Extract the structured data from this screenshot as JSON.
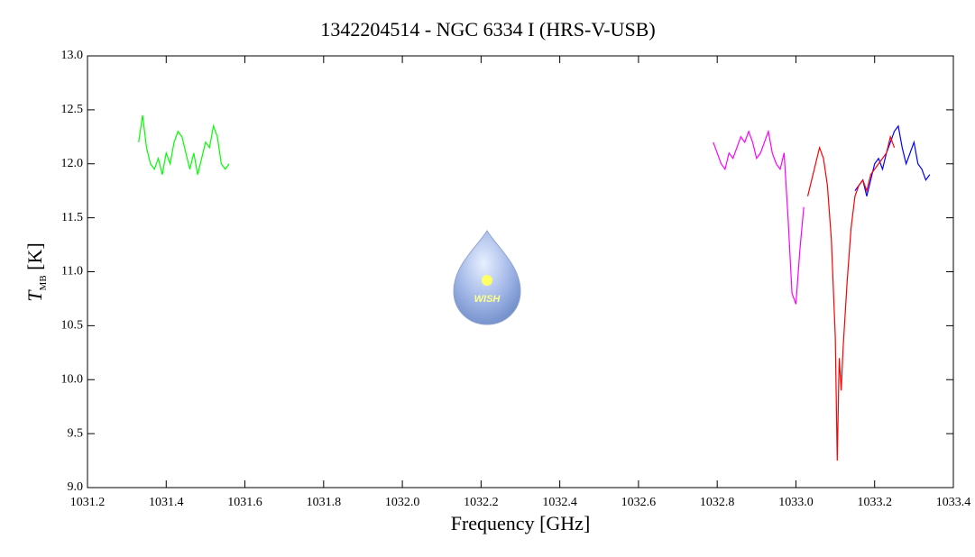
{
  "chart_data": {
    "type": "line",
    "title": "1342204514 - NGC 6334 I (HRS-V-USB)",
    "xlabel": "Frequency [GHz]",
    "ylabel": "T",
    "ylabel_sub": "MB",
    "ylabel_unit": "[K]",
    "logo_text": "WISH",
    "xlim": [
      1031.2,
      1033.4
    ],
    "xticks": [
      1031.2,
      1031.4,
      1031.6,
      1031.8,
      {
        "value": 1032,
        "label": "1032.0"
      },
      1032.2,
      1032.4,
      1032.6,
      1032.8,
      {
        "value": 1033,
        "label": "1033.0"
      },
      1033.2,
      1033.4
    ],
    "ylim": [
      9,
      13
    ],
    "yticks": [
      {
        "value": 9,
        "label": "9.0"
      },
      9.5,
      {
        "value": 10,
        "label": "10.0"
      },
      10.5,
      {
        "value": 11,
        "label": "11.0"
      },
      11.5,
      {
        "value": 12,
        "label": "12.0"
      },
      12.5,
      {
        "value": 13,
        "label": "13.0"
      }
    ],
    "series": [
      {
        "color": "#00ff00",
        "x": [
          1031.33,
          1031.34,
          1031.35,
          1031.36,
          1031.37,
          1031.38,
          1031.39,
          1031.4,
          1031.41,
          1031.42,
          1031.43,
          1031.44,
          1031.45,
          1031.46,
          1031.47,
          1031.48,
          1031.49,
          1031.5,
          1031.51,
          1031.52,
          1031.53,
          1031.54,
          1031.55,
          1031.56
        ],
        "values": [
          12.2,
          12.45,
          12.15,
          12.0,
          11.95,
          12.05,
          11.9,
          12.1,
          12.0,
          12.2,
          12.3,
          12.25,
          12.1,
          11.95,
          12.1,
          11.9,
          12.05,
          12.2,
          12.15,
          12.35,
          12.25,
          12.0,
          11.95,
          12.0
        ]
      },
      {
        "color": "#ff00ff",
        "x": [
          1032.79,
          1032.8,
          1032.81,
          1032.82,
          1032.83,
          1032.84,
          1032.85,
          1032.86,
          1032.87,
          1032.88,
          1032.89,
          1032.9,
          1032.91,
          1032.92,
          1032.93,
          1032.94,
          1032.95,
          1032.96,
          1032.97,
          1032.98,
          1032.99,
          1033.0,
          1033.01,
          1033.02
        ],
        "values": [
          12.2,
          12.1,
          12.0,
          11.95,
          12.1,
          12.05,
          12.15,
          12.25,
          12.2,
          12.3,
          12.2,
          12.05,
          12.1,
          12.2,
          12.3,
          12.1,
          12.0,
          11.95,
          12.1,
          11.5,
          10.8,
          10.7,
          11.2,
          11.6
        ]
      },
      {
        "color": "#0000ff",
        "x": [
          1033.15,
          1033.16,
          1033.17,
          1033.18,
          1033.19,
          1033.2,
          1033.21,
          1033.22,
          1033.23,
          1033.24,
          1033.25,
          1033.26,
          1033.27,
          1033.28,
          1033.29,
          1033.3,
          1033.31,
          1033.32,
          1033.33,
          1033.34
        ],
        "values": [
          11.75,
          11.8,
          11.85,
          11.7,
          11.85,
          12.0,
          12.05,
          11.95,
          12.1,
          12.2,
          12.3,
          12.35,
          12.15,
          12.0,
          12.1,
          12.2,
          12.0,
          11.95,
          11.85,
          11.9
        ]
      },
      {
        "color": "#ff0000",
        "x": [
          1033.03,
          1033.04,
          1033.05,
          1033.06,
          1033.07,
          1033.08,
          1033.09,
          1033.1,
          1033.105,
          1033.11,
          1033.115,
          1033.12,
          1033.13,
          1033.14,
          1033.15,
          1033.16,
          1033.17,
          1033.18,
          1033.19,
          1033.2,
          1033.21,
          1033.22,
          1033.23,
          1033.24,
          1033.25
        ],
        "values": [
          11.7,
          11.85,
          12.0,
          12.15,
          12.05,
          11.8,
          11.3,
          10.4,
          9.25,
          10.2,
          9.9,
          10.3,
          10.9,
          11.4,
          11.7,
          11.8,
          11.85,
          11.75,
          11.9,
          11.95,
          12.0,
          12.05,
          12.1,
          12.25,
          12.15
        ]
      }
    ]
  }
}
